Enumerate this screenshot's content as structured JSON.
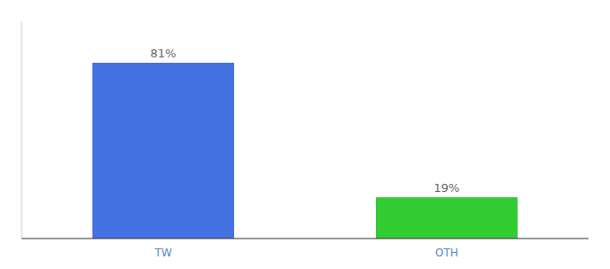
{
  "chart_data": {
    "type": "bar",
    "categories": [
      "TW",
      "OTH"
    ],
    "values": [
      81,
      19
    ],
    "value_labels": [
      "81%",
      "19%"
    ],
    "colors": [
      "#4472e0",
      "#33cc33"
    ],
    "ylim": [
      0,
      100
    ],
    "data_labels": true,
    "tick_labels": "x"
  }
}
